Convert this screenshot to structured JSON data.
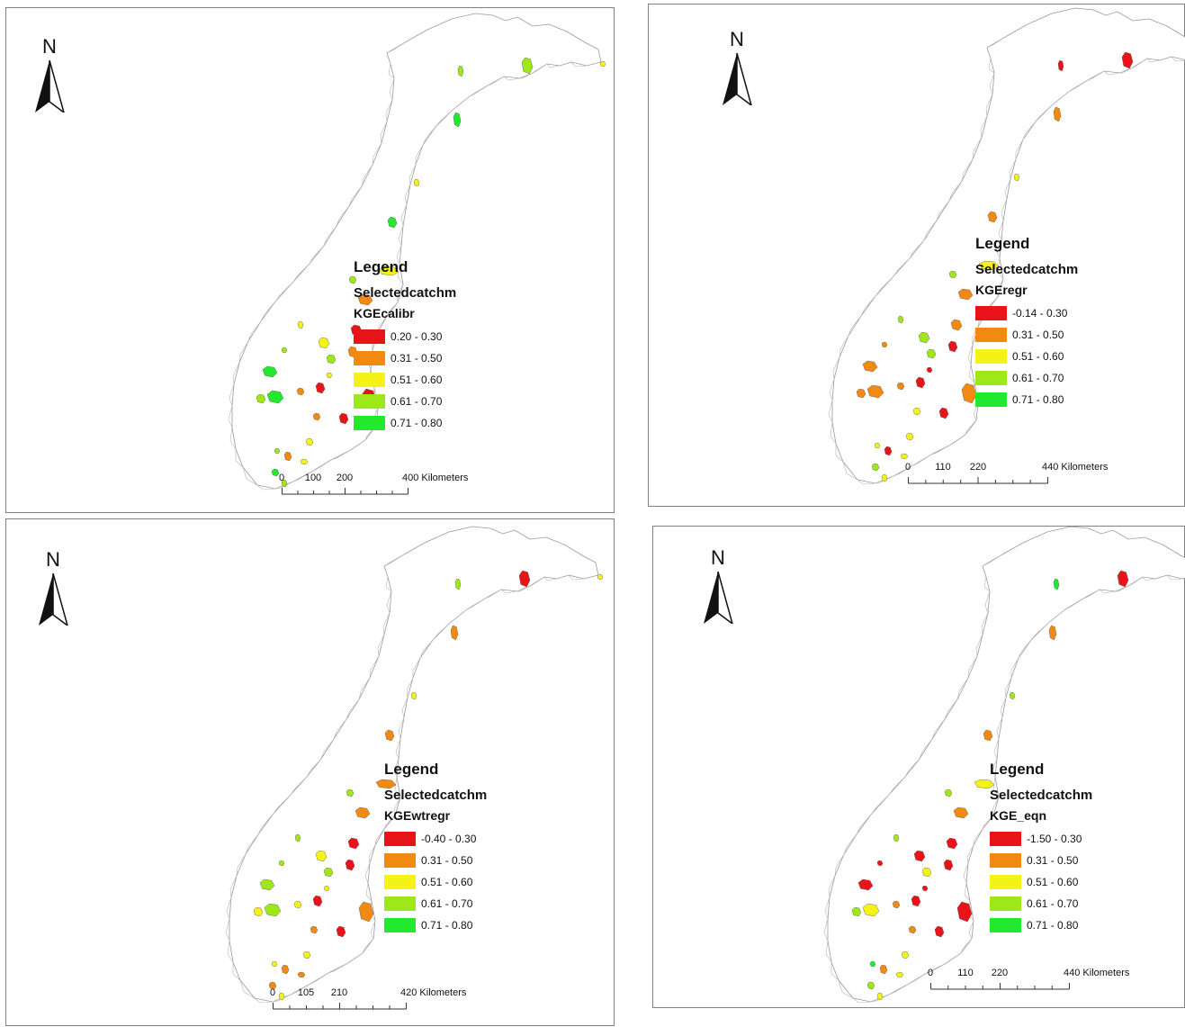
{
  "colors": {
    "red": "#e8141a",
    "orange": "#f28a12",
    "yellow": "#f5f218",
    "lime": "#9ee81a",
    "green": "#22e82e"
  },
  "north_label": "N",
  "legend_title": "Legend",
  "layer_name": "Selectedcatchm",
  "scale_unit": "Kilometers",
  "panels": [
    {
      "field": "KGEcalibr",
      "classes": [
        {
          "label": "0.20 - 0.30",
          "color": "red"
        },
        {
          "label": "0.31 - 0.50",
          "color": "orange"
        },
        {
          "label": "0.51 - 0.60",
          "color": "yellow"
        },
        {
          "label": "0.61 - 0.70",
          "color": "lime"
        },
        {
          "label": "0.71 - 0.80",
          "color": "green"
        }
      ],
      "scale_ticks": [
        "0",
        "100",
        "200",
        "400 Kilometers"
      ]
    },
    {
      "field": "KGEregr",
      "classes": [
        {
          "label": "-0.14 - 0.30",
          "color": "red"
        },
        {
          "label": "0.31 - 0.50",
          "color": "orange"
        },
        {
          "label": "0.51 - 0.60",
          "color": "yellow"
        },
        {
          "label": "0.61 - 0.70",
          "color": "lime"
        },
        {
          "label": "0.71 - 0.80",
          "color": "green"
        }
      ],
      "scale_ticks": [
        "0",
        "110",
        "220",
        "440 Kilometers"
      ]
    },
    {
      "field": "KGEwtregr",
      "classes": [
        {
          "label": "-0.40 - 0.30",
          "color": "red"
        },
        {
          "label": "0.31 - 0.50",
          "color": "orange"
        },
        {
          "label": "0.51 - 0.60",
          "color": "yellow"
        },
        {
          "label": "0.61 - 0.70",
          "color": "lime"
        },
        {
          "label": "0.71 - 0.80",
          "color": "green"
        }
      ],
      "scale_ticks": [
        "0",
        "105",
        "210",
        "420 Kilometers"
      ]
    },
    {
      "field": "KGE_eqn",
      "classes": [
        {
          "label": "-1.50 - 0.30",
          "color": "red"
        },
        {
          "label": "0.31 - 0.50",
          "color": "orange"
        },
        {
          "label": "0.51 - 0.60",
          "color": "yellow"
        },
        {
          "label": "0.61 - 0.70",
          "color": "lime"
        },
        {
          "label": "0.71 - 0.80",
          "color": "green"
        }
      ],
      "scale_ticks": [
        "0",
        "110",
        "220",
        "440 Kilometers"
      ]
    }
  ]
}
